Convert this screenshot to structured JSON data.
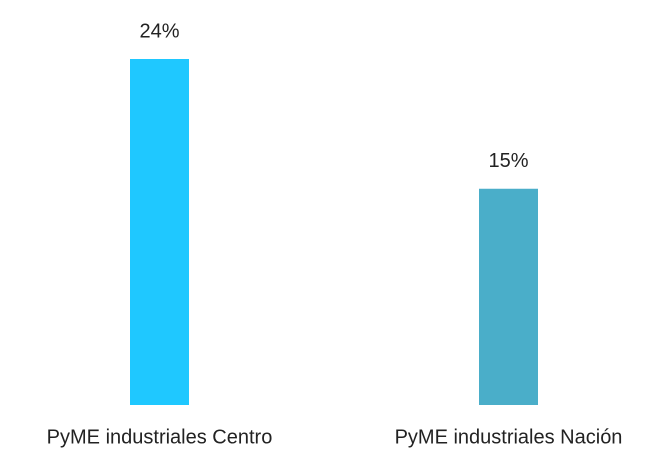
{
  "chart_data": {
    "type": "bar",
    "categories": [
      "PyME industriales Centro",
      "PyME industriales Nación"
    ],
    "values": [
      24,
      15
    ],
    "value_labels": [
      "24%",
      "15%"
    ],
    "colors": [
      "#1fc8ff",
      "#4aaec9"
    ]
  }
}
